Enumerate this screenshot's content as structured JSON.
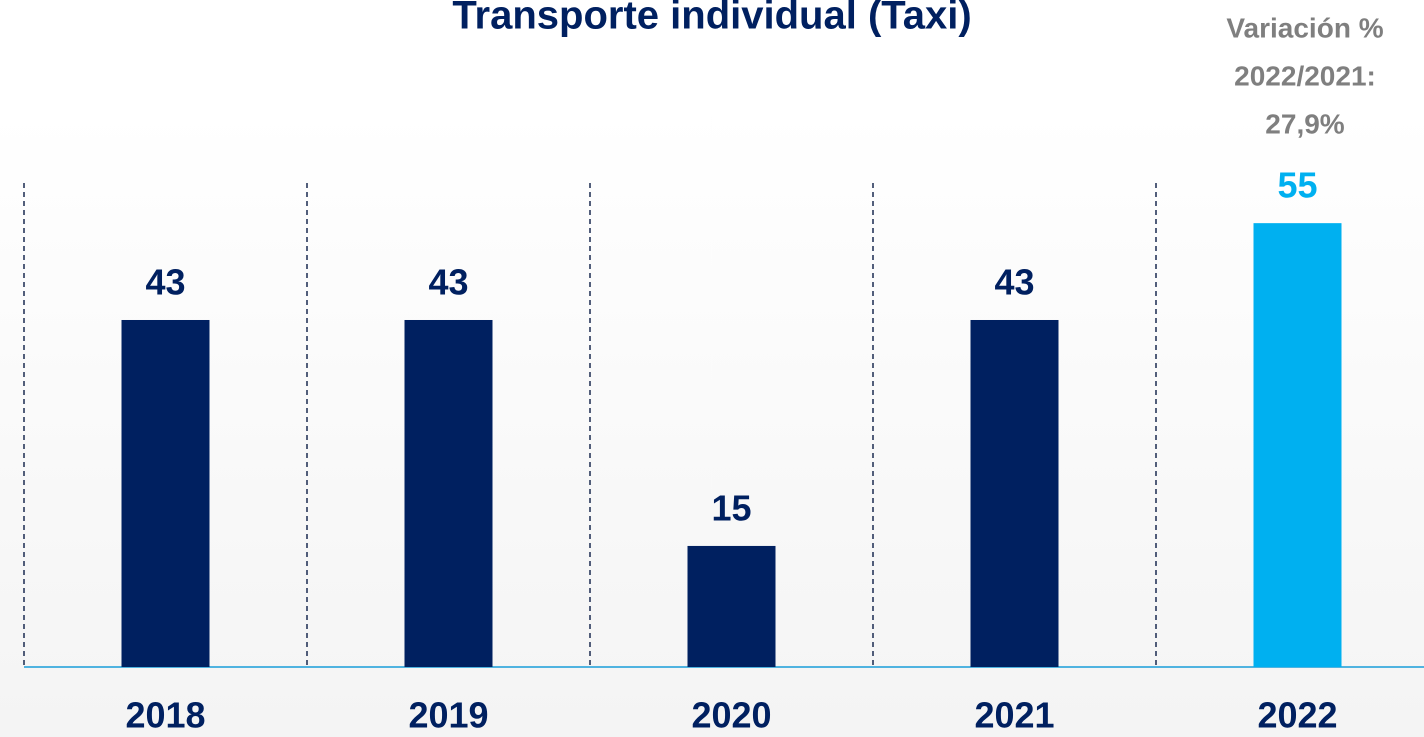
{
  "chart_data": {
    "type": "bar",
    "title": "Transporte individual (Taxi)",
    "annotation": [
      "Variación %",
      "2022/2021:",
      "27,9%"
    ],
    "categories": [
      "2018",
      "2019",
      "2020",
      "2021",
      "2022"
    ],
    "values": [
      43,
      43,
      15,
      43,
      55
    ],
    "colors": [
      "#002060",
      "#002060",
      "#002060",
      "#002060",
      "#00b0f0"
    ]
  }
}
